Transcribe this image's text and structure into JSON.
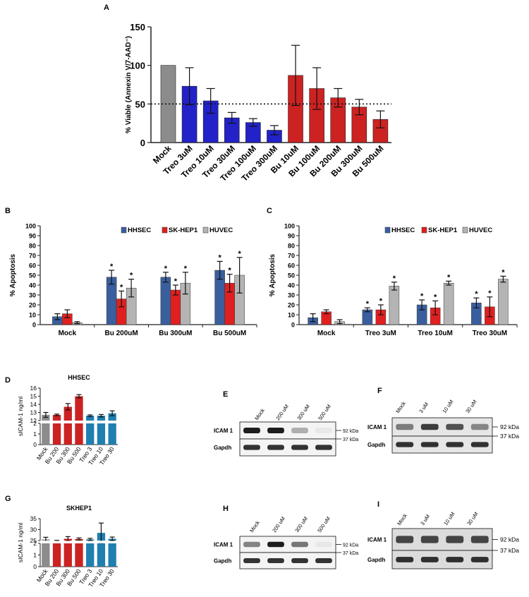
{
  "colors": {
    "gray": "#8c8c8c",
    "blue": "#2222c8",
    "red": "#cc2222",
    "hhsec": "#3a5f9e",
    "skhep1": "#e02020",
    "huvec": "#b4b4b4",
    "teal": "#1f7fb0",
    "axis": "#222222"
  },
  "panel_labels": {
    "A": "A",
    "B": "B",
    "C": "C",
    "D": "D",
    "E": "E",
    "F": "F",
    "G": "G",
    "H": "H",
    "I": "I"
  },
  "chart_data": [
    {
      "id": "A",
      "type": "bar",
      "title": "",
      "ylabel": "% Viable (Annexin V/7-AAD⁻)",
      "ylim": [
        0,
        150
      ],
      "yticks": [
        0,
        50,
        100,
        150
      ],
      "reference_line": 50,
      "categories": [
        "Mock",
        "Treo 3uM",
        "Treo 10uM",
        "Treo 30uM",
        "Treo 100uM",
        "Treo 300uM",
        "Bu 10uM",
        "Bu 100uM",
        "Bu 200uM",
        "Bu 300uM",
        "Bu 500uM"
      ],
      "values": [
        100,
        73,
        54,
        32,
        26,
        16,
        87,
        70,
        58,
        46,
        30
      ],
      "errors": [
        0,
        24,
        16,
        7,
        5,
        6,
        39,
        27,
        12,
        10,
        11
      ],
      "bar_colors": [
        "gray",
        "blue",
        "blue",
        "blue",
        "blue",
        "blue",
        "red",
        "red",
        "red",
        "red",
        "red"
      ]
    },
    {
      "id": "B",
      "type": "bar",
      "ylabel": "% Apoptosis",
      "ylim": [
        0,
        100
      ],
      "yticks": [
        0,
        10,
        20,
        30,
        40,
        50,
        60,
        70,
        80,
        90,
        100
      ],
      "categories": [
        "Mock",
        "Bu 200uM",
        "Bu 300uM",
        "Bu 500uM"
      ],
      "legend": [
        "HHSEC",
        "SK-HEP1",
        "HUVEC"
      ],
      "series": [
        {
          "name": "HHSEC",
          "color": "hhsec",
          "values": [
            8,
            48,
            48,
            55
          ],
          "errors": [
            3,
            7,
            5,
            9
          ],
          "sig": [
            false,
            true,
            true,
            true
          ]
        },
        {
          "name": "SK-HEP1",
          "color": "skhep1",
          "values": [
            11,
            26,
            35,
            42
          ],
          "errors": [
            4,
            8,
            5,
            9
          ],
          "sig": [
            false,
            true,
            true,
            true
          ]
        },
        {
          "name": "HUVEC",
          "color": "huvec",
          "values": [
            2,
            37,
            42,
            50
          ],
          "errors": [
            1,
            9,
            11,
            18
          ],
          "sig": [
            false,
            true,
            true,
            true
          ]
        }
      ]
    },
    {
      "id": "C",
      "type": "bar",
      "ylabel": "% Apoptosis",
      "ylim": [
        0,
        100
      ],
      "yticks": [
        0,
        10,
        20,
        30,
        40,
        50,
        60,
        70,
        80,
        90,
        100
      ],
      "categories": [
        "Mock",
        "Treo  3uM",
        "Treo  10uM",
        "Treo  30uM"
      ],
      "legend": [
        "HHSEC",
        "SK-HEP1",
        "HUVEC"
      ],
      "series": [
        {
          "name": "HHSEC",
          "color": "hhsec",
          "values": [
            7,
            15,
            20,
            22
          ],
          "errors": [
            4,
            2,
            5,
            5
          ],
          "sig": [
            false,
            true,
            true,
            true
          ]
        },
        {
          "name": "SK-HEP1",
          "color": "skhep1",
          "values": [
            13,
            15,
            17,
            18
          ],
          "errors": [
            2,
            5,
            7,
            10
          ],
          "sig": [
            false,
            true,
            true,
            true
          ]
        },
        {
          "name": "HUVEC",
          "color": "huvec",
          "values": [
            3,
            39,
            42,
            46
          ],
          "errors": [
            2,
            4,
            2,
            3
          ],
          "sig": [
            false,
            true,
            true,
            true
          ]
        }
      ]
    },
    {
      "id": "D",
      "type": "bar",
      "title": "HHSEC",
      "ylabel": "sICAM-1 ng/ml",
      "axis_break": true,
      "lower_yticks": [
        0,
        1,
        2
      ],
      "upper_yticks": [
        12,
        13,
        14,
        15,
        16
      ],
      "categories": [
        "Mock",
        "Bu 200",
        "Bu 300",
        "Bu 500",
        "Treo 3",
        "Treo 10",
        "Treo 30"
      ],
      "values": [
        12.7,
        12.7,
        13.7,
        15.0,
        12.6,
        12.6,
        12.9
      ],
      "errors": [
        0.3,
        0.1,
        0.4,
        0.2,
        0.1,
        0.15,
        0.3
      ],
      "bar_colors": [
        "gray",
        "red",
        "red",
        "red",
        "teal",
        "teal",
        "teal"
      ]
    },
    {
      "id": "G",
      "type": "bar",
      "title": "SKHEP1",
      "ylabel": "sICAM-1 ng/ml",
      "axis_break": true,
      "lower_yticks": [
        0,
        1,
        2
      ],
      "upper_yticks": [
        25,
        30,
        35
      ],
      "categories": [
        "Mock",
        "Bu 200",
        "Bu 300",
        "Bu 500",
        "Treo 3",
        "Treo 10",
        "Treo 30"
      ],
      "values": [
        25.5,
        24.8,
        25.8,
        25.7,
        25.5,
        28.5,
        25.8
      ],
      "errors": [
        1.0,
        0.3,
        1.0,
        0.5,
        0.5,
        4.5,
        0.8
      ],
      "bar_colors": [
        "gray",
        "red",
        "red",
        "red",
        "teal",
        "teal",
        "teal"
      ]
    }
  ],
  "blots": {
    "E": {
      "lanes": [
        "Mock",
        "200 uM",
        "300 uM",
        "500 uM"
      ],
      "row1": "ICAM 1",
      "row2": "Gapdh",
      "kda1": "92 kDa",
      "kda2": "37 kDa",
      "intensity": [
        0.95,
        0.95,
        0.3,
        0.05
      ]
    },
    "F": {
      "lanes": [
        "Mock",
        "3 uM",
        "10 uM",
        "30 uM"
      ],
      "row1": "ICAM 1",
      "row2": "Gapdh",
      "kda1": "92 kDa",
      "kda2": "37 kDa",
      "intensity": [
        0.5,
        0.8,
        0.7,
        0.45
      ]
    },
    "H": {
      "lanes": [
        "Mock",
        "200 uM",
        "300 uM",
        "500 uM"
      ],
      "row1": "ICAM 1",
      "row2": "Gapdh",
      "kda1": "92 kDa",
      "kda2": "37 kDa",
      "intensity": [
        0.5,
        0.95,
        0.55,
        0.05
      ]
    },
    "I": {
      "lanes": [
        "Mock",
        "3 uM",
        "10 uM",
        "30 uM"
      ],
      "row1": "ICAM 1",
      "row2": "Gapdh",
      "kda1": "92 kDa",
      "kda2": "37 kDa",
      "intensity": [
        0.75,
        0.75,
        0.75,
        0.75
      ]
    }
  }
}
